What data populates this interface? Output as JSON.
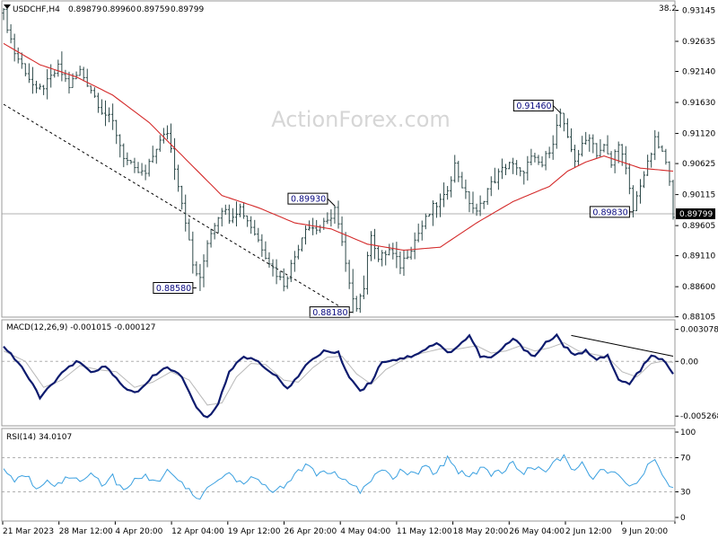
{
  "header": {
    "symbol": "USDCHF,H4",
    "open": "0.89879",
    "high": "0.89960",
    "low": "0.89759",
    "close": "0.89799",
    "corner_value": "38.2"
  },
  "watermark": "ActionForex.com",
  "chart_data": [
    {
      "type": "candlestick",
      "title": "",
      "price_axis_ticks": [
        "0.93145",
        "0.92635",
        "0.92140",
        "0.91630",
        "0.91120",
        "0.90625",
        "0.90115",
        "0.89605",
        "0.89110",
        "0.88600",
        "0.88105"
      ],
      "ylim": [
        0.881,
        0.933
      ],
      "current_price": "0.89799",
      "current_price_value": 0.89799,
      "x_ticks": [
        "21 Mar 2023",
        "28 Mar 12:00",
        "4 Apr 20:00",
        "12 Apr 04:00",
        "19 Apr 12:00",
        "26 Apr 20:00",
        "4 May 04:00",
        "11 May 12:00",
        "18 May 20:00",
        "26 May 04:00",
        "2 Jun 12:00",
        "9 Jun 20:00"
      ],
      "price_labels": [
        {
          "text": "0.88580",
          "value": 0.8858,
          "bar": 53
        },
        {
          "text": "0.89930",
          "value": 0.8993,
          "bar": 91
        },
        {
          "text": "0.88180",
          "value": 0.8818,
          "bar": 96
        },
        {
          "text": "0.91460",
          "value": 0.9146,
          "bar": 153
        },
        {
          "text": "0.89830",
          "value": 0.8983,
          "bar": 173
        }
      ],
      "close_path": [
        [
          0,
          0.931
        ],
        [
          3,
          0.9245
        ],
        [
          6,
          0.9215
        ],
        [
          9,
          0.918
        ],
        [
          12,
          0.9195
        ],
        [
          15,
          0.922
        ],
        [
          18,
          0.919
        ],
        [
          21,
          0.9215
        ],
        [
          24,
          0.9185
        ],
        [
          27,
          0.915
        ],
        [
          30,
          0.913
        ],
        [
          33,
          0.9075
        ],
        [
          36,
          0.905
        ],
        [
          39,
          0.9045
        ],
        [
          42,
          0.909
        ],
        [
          45,
          0.9115
        ],
        [
          48,
          0.903
        ],
        [
          50,
          0.897
        ],
        [
          52,
          0.8895
        ],
        [
          54,
          0.887
        ],
        [
          56,
          0.8935
        ],
        [
          58,
          0.8965
        ],
        [
          60,
          0.899
        ],
        [
          62,
          0.8975
        ],
        [
          65,
          0.899
        ],
        [
          68,
          0.896
        ],
        [
          71,
          0.8925
        ],
        [
          74,
          0.889
        ],
        [
          77,
          0.8865
        ],
        [
          80,
          0.891
        ],
        [
          83,
          0.896
        ],
        [
          86,
          0.8955
        ],
        [
          89,
          0.8965
        ],
        [
          91,
          0.899
        ],
        [
          93,
          0.893
        ],
        [
          95,
          0.886
        ],
        [
          97,
          0.883
        ],
        [
          99,
          0.886
        ],
        [
          101,
          0.895
        ],
        [
          103,
          0.8905
        ],
        [
          106,
          0.892
        ],
        [
          109,
          0.8895
        ],
        [
          112,
          0.8925
        ],
        [
          115,
          0.896
        ],
        [
          118,
          0.899
        ],
        [
          121,
          0.9005
        ],
        [
          124,
          0.906
        ],
        [
          127,
          0.901
        ],
        [
          130,
          0.898
        ],
        [
          133,
          0.902
        ],
        [
          136,
          0.9045
        ],
        [
          139,
          0.9065
        ],
        [
          142,
          0.9045
        ],
        [
          145,
          0.907
        ],
        [
          148,
          0.906
        ],
        [
          151,
          0.91
        ],
        [
          153,
          0.9145
        ],
        [
          155,
          0.91
        ],
        [
          157,
          0.907
        ],
        [
          159,
          0.909
        ],
        [
          161,
          0.911
        ],
        [
          163,
          0.908
        ],
        [
          165,
          0.909
        ],
        [
          167,
          0.906
        ],
        [
          169,
          0.91
        ],
        [
          171,
          0.905
        ],
        [
          173,
          0.8985
        ],
        [
          175,
          0.903
        ],
        [
          177,
          0.906
        ],
        [
          179,
          0.91
        ],
        [
          181,
          0.908
        ],
        [
          183,
          0.904
        ],
        [
          184,
          0.898
        ]
      ],
      "ma_path": [
        [
          0,
          0.926
        ],
        [
          10,
          0.9225
        ],
        [
          20,
          0.9205
        ],
        [
          30,
          0.9175
        ],
        [
          40,
          0.913
        ],
        [
          50,
          0.907
        ],
        [
          60,
          0.901
        ],
        [
          70,
          0.899
        ],
        [
          80,
          0.8965
        ],
        [
          90,
          0.8955
        ],
        [
          100,
          0.893
        ],
        [
          110,
          0.892
        ],
        [
          120,
          0.8925
        ],
        [
          130,
          0.8965
        ],
        [
          140,
          0.9
        ],
        [
          150,
          0.9025
        ],
        [
          155,
          0.905
        ],
        [
          160,
          0.9065
        ],
        [
          165,
          0.9075
        ],
        [
          170,
          0.9065
        ],
        [
          175,
          0.9055
        ],
        [
          184,
          0.905
        ]
      ],
      "trendline": [
        [
          0,
          0.916
        ],
        [
          95,
          0.8818
        ]
      ]
    },
    {
      "type": "line",
      "title": "MACD(12,26,9) -0.001015 -0.000127",
      "axis_ticks": [
        "0.003078",
        "0.00",
        "-0.005268"
      ],
      "ylim": [
        -0.0062,
        0.004
      ],
      "zero_label": "0.00",
      "macd_path": [
        [
          0,
          0.0015
        ],
        [
          5,
          -0.0005
        ],
        [
          10,
          -0.0035
        ],
        [
          15,
          -0.0015
        ],
        [
          20,
          0.0
        ],
        [
          24,
          -0.001
        ],
        [
          28,
          -0.0005
        ],
        [
          33,
          -0.0025
        ],
        [
          37,
          -0.003
        ],
        [
          41,
          -0.0015
        ],
        [
          45,
          -0.0005
        ],
        [
          49,
          -0.0015
        ],
        [
          53,
          -0.0045
        ],
        [
          56,
          -0.0055
        ],
        [
          59,
          -0.004
        ],
        [
          62,
          -0.001
        ],
        [
          66,
          0.0005
        ],
        [
          70,
          0.0
        ],
        [
          74,
          -0.0012
        ],
        [
          78,
          -0.0025
        ],
        [
          81,
          -0.0015
        ],
        [
          84,
          0.0
        ],
        [
          88,
          0.001
        ],
        [
          92,
          0.0008
        ],
        [
          95,
          -0.0015
        ],
        [
          98,
          -0.0028
        ],
        [
          101,
          -0.002
        ],
        [
          104,
          0.0
        ],
        [
          108,
          0.0002
        ],
        [
          112,
          0.0005
        ],
        [
          116,
          0.0012
        ],
        [
          119,
          0.0018
        ],
        [
          122,
          0.0008
        ],
        [
          125,
          0.0015
        ],
        [
          128,
          0.0025
        ],
        [
          131,
          0.0005
        ],
        [
          134,
          0.0003
        ],
        [
          137,
          0.0012
        ],
        [
          140,
          0.0022
        ],
        [
          143,
          0.0012
        ],
        [
          146,
          0.0005
        ],
        [
          149,
          0.0018
        ],
        [
          152,
          0.0025
        ],
        [
          154,
          0.0015
        ],
        [
          157,
          0.0005
        ],
        [
          160,
          0.001
        ],
        [
          163,
          0.0003
        ],
        [
          166,
          0.0005
        ],
        [
          169,
          -0.0018
        ],
        [
          172,
          -0.0022
        ],
        [
          175,
          -0.0008
        ],
        [
          178,
          0.0005
        ],
        [
          181,
          0.0002
        ],
        [
          184,
          -0.0012
        ]
      ],
      "signal_path": [
        [
          0,
          0.001
        ],
        [
          6,
          0.0
        ],
        [
          11,
          -0.0025
        ],
        [
          16,
          -0.0018
        ],
        [
          21,
          -0.0004
        ],
        [
          26,
          -0.0008
        ],
        [
          31,
          -0.001
        ],
        [
          36,
          -0.0025
        ],
        [
          41,
          -0.002
        ],
        [
          46,
          -0.001
        ],
        [
          51,
          -0.0018
        ],
        [
          56,
          -0.0042
        ],
        [
          60,
          -0.004
        ],
        [
          64,
          -0.0015
        ],
        [
          68,
          -0.0002
        ],
        [
          72,
          -0.0003
        ],
        [
          77,
          -0.0018
        ],
        [
          81,
          -0.002
        ],
        [
          85,
          -0.0006
        ],
        [
          89,
          0.0004
        ],
        [
          93,
          0.0005
        ],
        [
          97,
          -0.0012
        ],
        [
          101,
          -0.0022
        ],
        [
          105,
          -0.0008
        ],
        [
          110,
          0.0002
        ],
        [
          115,
          0.0008
        ],
        [
          120,
          0.0012
        ],
        [
          125,
          0.0012
        ],
        [
          130,
          0.0015
        ],
        [
          134,
          0.0008
        ],
        [
          138,
          0.001
        ],
        [
          142,
          0.0015
        ],
        [
          146,
          0.001
        ],
        [
          150,
          0.0013
        ],
        [
          154,
          0.0018
        ],
        [
          158,
          0.001
        ],
        [
          162,
          0.0007
        ],
        [
          166,
          0.0004
        ],
        [
          170,
          -0.001
        ],
        [
          174,
          -0.0015
        ],
        [
          178,
          -0.0002
        ],
        [
          181,
          0.0
        ],
        [
          184,
          -0.0001
        ]
      ],
      "trendline": [
        [
          156,
          0.0025
        ],
        [
          184,
          0.0005
        ]
      ]
    },
    {
      "type": "line",
      "title": "RSI(14) 34.0107",
      "axis_ticks": [
        "100",
        "70",
        "30",
        "0"
      ],
      "ylim": [
        0,
        100
      ],
      "levels": [
        70,
        30
      ],
      "rsi_path": [
        [
          0,
          58
        ],
        [
          3,
          42
        ],
        [
          6,
          50
        ],
        [
          9,
          35
        ],
        [
          12,
          45
        ],
        [
          15,
          38
        ],
        [
          18,
          48
        ],
        [
          21,
          42
        ],
        [
          24,
          55
        ],
        [
          27,
          38
        ],
        [
          30,
          48
        ],
        [
          33,
          30
        ],
        [
          36,
          42
        ],
        [
          39,
          50
        ],
        [
          42,
          40
        ],
        [
          45,
          58
        ],
        [
          48,
          42
        ],
        [
          51,
          30
        ],
        [
          53,
          22
        ],
        [
          56,
          32
        ],
        [
          59,
          45
        ],
        [
          62,
          52
        ],
        [
          65,
          40
        ],
        [
          68,
          48
        ],
        [
          71,
          38
        ],
        [
          74,
          30
        ],
        [
          77,
          38
        ],
        [
          80,
          48
        ],
        [
          83,
          62
        ],
        [
          86,
          50
        ],
        [
          89,
          55
        ],
        [
          92,
          48
        ],
        [
          95,
          38
        ],
        [
          98,
          30
        ],
        [
          101,
          45
        ],
        [
          104,
          55
        ],
        [
          107,
          48
        ],
        [
          110,
          55
        ],
        [
          113,
          50
        ],
        [
          116,
          58
        ],
        [
          119,
          52
        ],
        [
          122,
          70
        ],
        [
          125,
          55
        ],
        [
          128,
          48
        ],
        [
          131,
          58
        ],
        [
          134,
          52
        ],
        [
          137,
          55
        ],
        [
          140,
          62
        ],
        [
          143,
          52
        ],
        [
          146,
          60
        ],
        [
          149,
          55
        ],
        [
          152,
          65
        ],
        [
          154,
          72
        ],
        [
          156,
          55
        ],
        [
          159,
          62
        ],
        [
          162,
          48
        ],
        [
          165,
          55
        ],
        [
          168,
          52
        ],
        [
          170,
          42
        ],
        [
          173,
          35
        ],
        [
          176,
          55
        ],
        [
          179,
          65
        ],
        [
          181,
          52
        ],
        [
          184,
          34
        ]
      ]
    }
  ]
}
